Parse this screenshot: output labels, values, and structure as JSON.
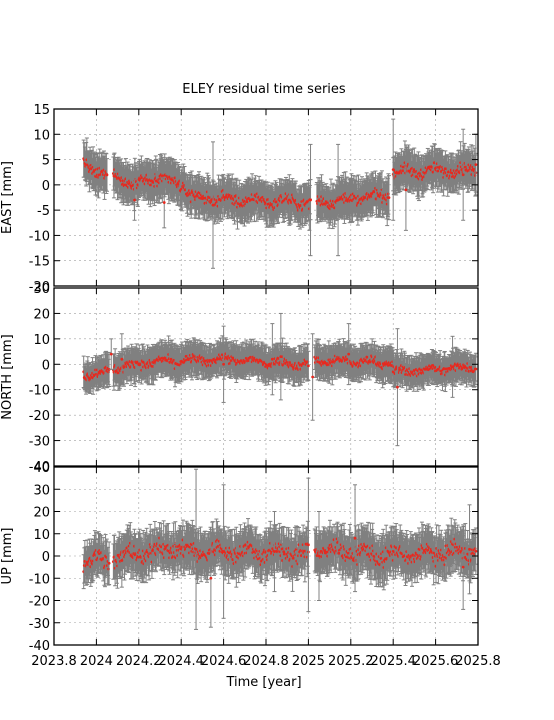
{
  "chart_data": {
    "type": "scatter",
    "title": "ELEY residual time series",
    "xlabel": "Time [year]",
    "xlim": [
      2023.8,
      2025.8
    ],
    "x_ticks": [
      2023.8,
      2024.0,
      2024.2,
      2024.4,
      2024.6,
      2024.8,
      2025.0,
      2025.2,
      2025.4,
      2025.6,
      2025.8
    ],
    "x_tick_labels": [
      "2023.8",
      "2024",
      "2024.2",
      "2024.4",
      "2024.6",
      "2024.8",
      "2025",
      "2025.2",
      "2025.4",
      "2025.6",
      "2025.8"
    ],
    "grid": true,
    "colors": {
      "points": "#e8281e",
      "error_bars": "#808080",
      "grid": "#a0a0a0"
    },
    "panels": [
      {
        "name": "east",
        "ylabel": "EAST [mm]",
        "ylim": [
          -20,
          15
        ],
        "y_ticks": [
          -20,
          -15,
          -10,
          -5,
          0,
          5,
          10,
          15
        ],
        "y_tick_labels": [
          "-20",
          "-15",
          "-10",
          "-5",
          "0",
          "5",
          "10",
          "15"
        ],
        "segments": [
          {
            "x": [
              2023.94,
              2023.97
            ],
            "y": [
              4.5,
              3.5
            ],
            "err": 3.5
          },
          {
            "x": [
              2023.97,
              2024.05
            ],
            "y": [
              3.5,
              1.5
            ],
            "err": 3.5
          },
          {
            "x": [
              2024.08,
              2024.17
            ],
            "y": [
              2.5,
              0.0
            ],
            "err": 3.5
          },
          {
            "x": [
              2024.17,
              2024.28
            ],
            "y": [
              0.0,
              1.5
            ],
            "err": 3.5
          },
          {
            "x": [
              2024.28,
              2024.39
            ],
            "y": [
              1.0,
              0.5
            ],
            "err": 3.5
          },
          {
            "x": [
              2024.39,
              2024.47
            ],
            "y": [
              0.5,
              -3.0
            ],
            "err": 3.5
          },
          {
            "x": [
              2024.47,
              2024.66
            ],
            "y": [
              -2.5,
              -3.0
            ],
            "err": 3.5
          },
          {
            "x": [
              2024.66,
              2025.01
            ],
            "y": [
              -3.0,
              -3.5
            ],
            "err": 3.5
          },
          {
            "x": [
              2025.04,
              2025.38
            ],
            "y": [
              -3.5,
              -2.0
            ],
            "err": 3.5
          },
          {
            "x": [
              2025.4,
              2025.79
            ],
            "y": [
              2.5,
              3.0
            ],
            "err": 3.5
          }
        ],
        "noise": 1.0,
        "outliers": [
          {
            "x": 2024.18,
            "y": -3,
            "err": 4
          },
          {
            "x": 2024.32,
            "y": -3.5,
            "err": 5
          },
          {
            "x": 2024.55,
            "y": -4,
            "err": 12.5
          },
          {
            "x": 2024.91,
            "y": -3,
            "err": 5
          },
          {
            "x": 2025.01,
            "y": -3,
            "err": 11
          },
          {
            "x": 2025.14,
            "y": -3,
            "err": 11
          },
          {
            "x": 2025.4,
            "y": 3,
            "err": 10
          },
          {
            "x": 2025.46,
            "y": -1,
            "err": 8
          },
          {
            "x": 2025.73,
            "y": 2,
            "err": 9
          },
          {
            "x": 2025.79,
            "y": 4,
            "err": 6
          }
        ]
      },
      {
        "name": "north",
        "ylabel": "NORTH [mm]",
        "ylim": [
          -40,
          30
        ],
        "y_ticks": [
          -40,
          -30,
          -20,
          -10,
          0,
          10,
          20,
          30
        ],
        "y_tick_labels": [
          "-40",
          "-30",
          "-20",
          "-10",
          "0",
          "10",
          "20",
          "30"
        ],
        "segments": [
          {
            "x": [
              2023.94,
              2024.06
            ],
            "y": [
              -4.0,
              -3.0
            ],
            "err": 5.5
          },
          {
            "x": [
              2024.08,
              2024.28
            ],
            "y": [
              -1.5,
              1.0
            ],
            "err": 6
          },
          {
            "x": [
              2024.28,
              2024.66
            ],
            "y": [
              1.0,
              2.0
            ],
            "err": 6
          },
          {
            "x": [
              2024.66,
              2025.0
            ],
            "y": [
              1.5,
              0.0
            ],
            "err": 6
          },
          {
            "x": [
              2025.03,
              2025.4
            ],
            "y": [
              1.5,
              0.5
            ],
            "err": 6
          },
          {
            "x": [
              2025.4,
              2025.79
            ],
            "y": [
              -3.0,
              -1.0
            ],
            "err": 5.5
          }
        ],
        "noise": 1.6,
        "outliers": [
          {
            "x": 2024.07,
            "y": 4,
            "err": 6
          },
          {
            "x": 2024.12,
            "y": 2,
            "err": 10
          },
          {
            "x": 2024.6,
            "y": 0,
            "err": 15
          },
          {
            "x": 2024.83,
            "y": 2,
            "err": 14
          },
          {
            "x": 2024.87,
            "y": 3,
            "err": 17
          },
          {
            "x": 2025.02,
            "y": -5,
            "err": 17
          },
          {
            "x": 2025.19,
            "y": 4,
            "err": 12
          },
          {
            "x": 2025.42,
            "y": -9,
            "err": 23
          },
          {
            "x": 2025.68,
            "y": -1,
            "err": 12
          }
        ]
      },
      {
        "name": "up",
        "ylabel": "UP [mm]",
        "ylim": [
          -40,
          40
        ],
        "y_ticks": [
          -40,
          -30,
          -20,
          -10,
          0,
          10,
          20,
          30,
          40
        ],
        "y_tick_labels": [
          "-40",
          "-30",
          "-20",
          "-10",
          "0",
          "10",
          "20",
          "30",
          "40"
        ],
        "segments": [
          {
            "x": [
              2023.94,
              2024.06
            ],
            "y": [
              -1.0,
              -2.0
            ],
            "err": 8
          },
          {
            "x": [
              2024.08,
              2024.4
            ],
            "y": [
              -1.0,
              4.0
            ],
            "err": 8.5
          },
          {
            "x": [
              2024.4,
              2024.66
            ],
            "y": [
              2.0,
              2.0
            ],
            "err": 9
          },
          {
            "x": [
              2024.66,
              2025.0
            ],
            "y": [
              2.0,
              1.0
            ],
            "err": 9
          },
          {
            "x": [
              2025.03,
              2025.4
            ],
            "y": [
              3.0,
              0.0
            ],
            "err": 9
          },
          {
            "x": [
              2025.4,
              2025.79
            ],
            "y": [
              0.0,
              2.0
            ],
            "err": 9
          }
        ],
        "noise": 3.5,
        "outliers": [
          {
            "x": 2024.12,
            "y": -2,
            "err": 12
          },
          {
            "x": 2024.47,
            "y": 3,
            "err": 36
          },
          {
            "x": 2024.54,
            "y": -10,
            "err": 22
          },
          {
            "x": 2024.6,
            "y": 2,
            "err": 30
          },
          {
            "x": 2024.84,
            "y": 2,
            "err": 18
          },
          {
            "x": 2025.0,
            "y": 5,
            "err": 30
          },
          {
            "x": 2025.05,
            "y": 0,
            "err": 20
          },
          {
            "x": 2025.22,
            "y": 8,
            "err": 24
          },
          {
            "x": 2025.73,
            "y": -5,
            "err": 19
          },
          {
            "x": 2025.76,
            "y": 3,
            "err": 20
          }
        ]
      }
    ]
  }
}
